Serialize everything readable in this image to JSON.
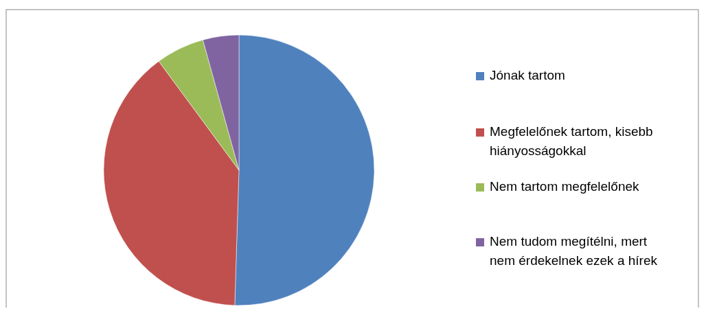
{
  "chart_data": {
    "type": "pie",
    "categories": [
      "Jónak tartom",
      "Megfelelőnek tartom, kisebb hiányosságokkal",
      "Nem tartom  megfelelőnek",
      "Nem tudom megítélni, mert nem érdekelnek ezek a hírek"
    ],
    "values": [
      50.5,
      39.4,
      5.8,
      4.3
    ],
    "colors": [
      "#4f81bd",
      "#c0504d",
      "#9bbb59",
      "#8064a2"
    ],
    "legend": "right"
  }
}
